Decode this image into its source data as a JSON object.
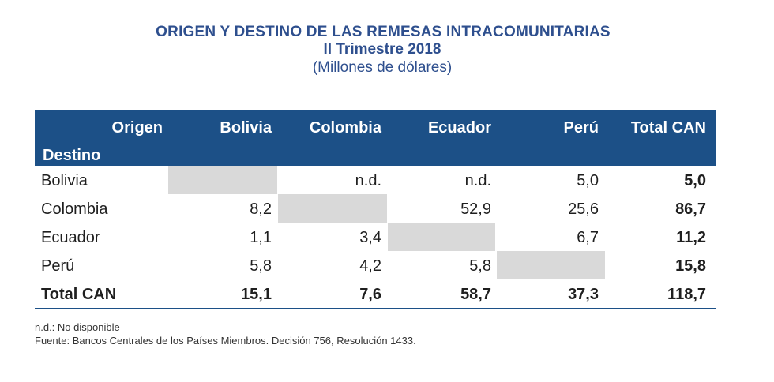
{
  "title": "ORIGEN Y DESTINO DE LAS REMESAS INTRACOMUNITARIAS",
  "subtitle": "II Trimestre 2018",
  "unit": "(Millones de dólares)",
  "header": {
    "origen": "Origen",
    "destino": "Destino",
    "columns": [
      "Bolivia",
      "Colombia",
      "Ecuador",
      "Perú",
      "Total CAN"
    ]
  },
  "rows": [
    {
      "label": "Bolivia",
      "values": [
        "",
        "n.d.",
        "n.d.",
        "5,0",
        "5,0"
      ]
    },
    {
      "label": "Colombia",
      "values": [
        "8,2",
        "",
        "52,9",
        "25,6",
        "86,7"
      ]
    },
    {
      "label": "Ecuador",
      "values": [
        "1,1",
        "3,4",
        "",
        "6,7",
        "11,2"
      ]
    },
    {
      "label": "Perú",
      "values": [
        "5,8",
        "4,2",
        "5,8",
        "",
        "15,8"
      ]
    }
  ],
  "total": {
    "label": "Total CAN",
    "values": [
      "15,1",
      "7,6",
      "58,7",
      "37,3",
      "118,7"
    ]
  },
  "notes": {
    "nd": "n.d.: No disponible",
    "source": "Fuente: Bancos Centrales de los Países Miembros. Decisión 756, Resolución 1433."
  },
  "colors": {
    "header_bg": "#1c5087",
    "title": "#2e4f8e",
    "blank_cell": "#d9d9d9"
  }
}
